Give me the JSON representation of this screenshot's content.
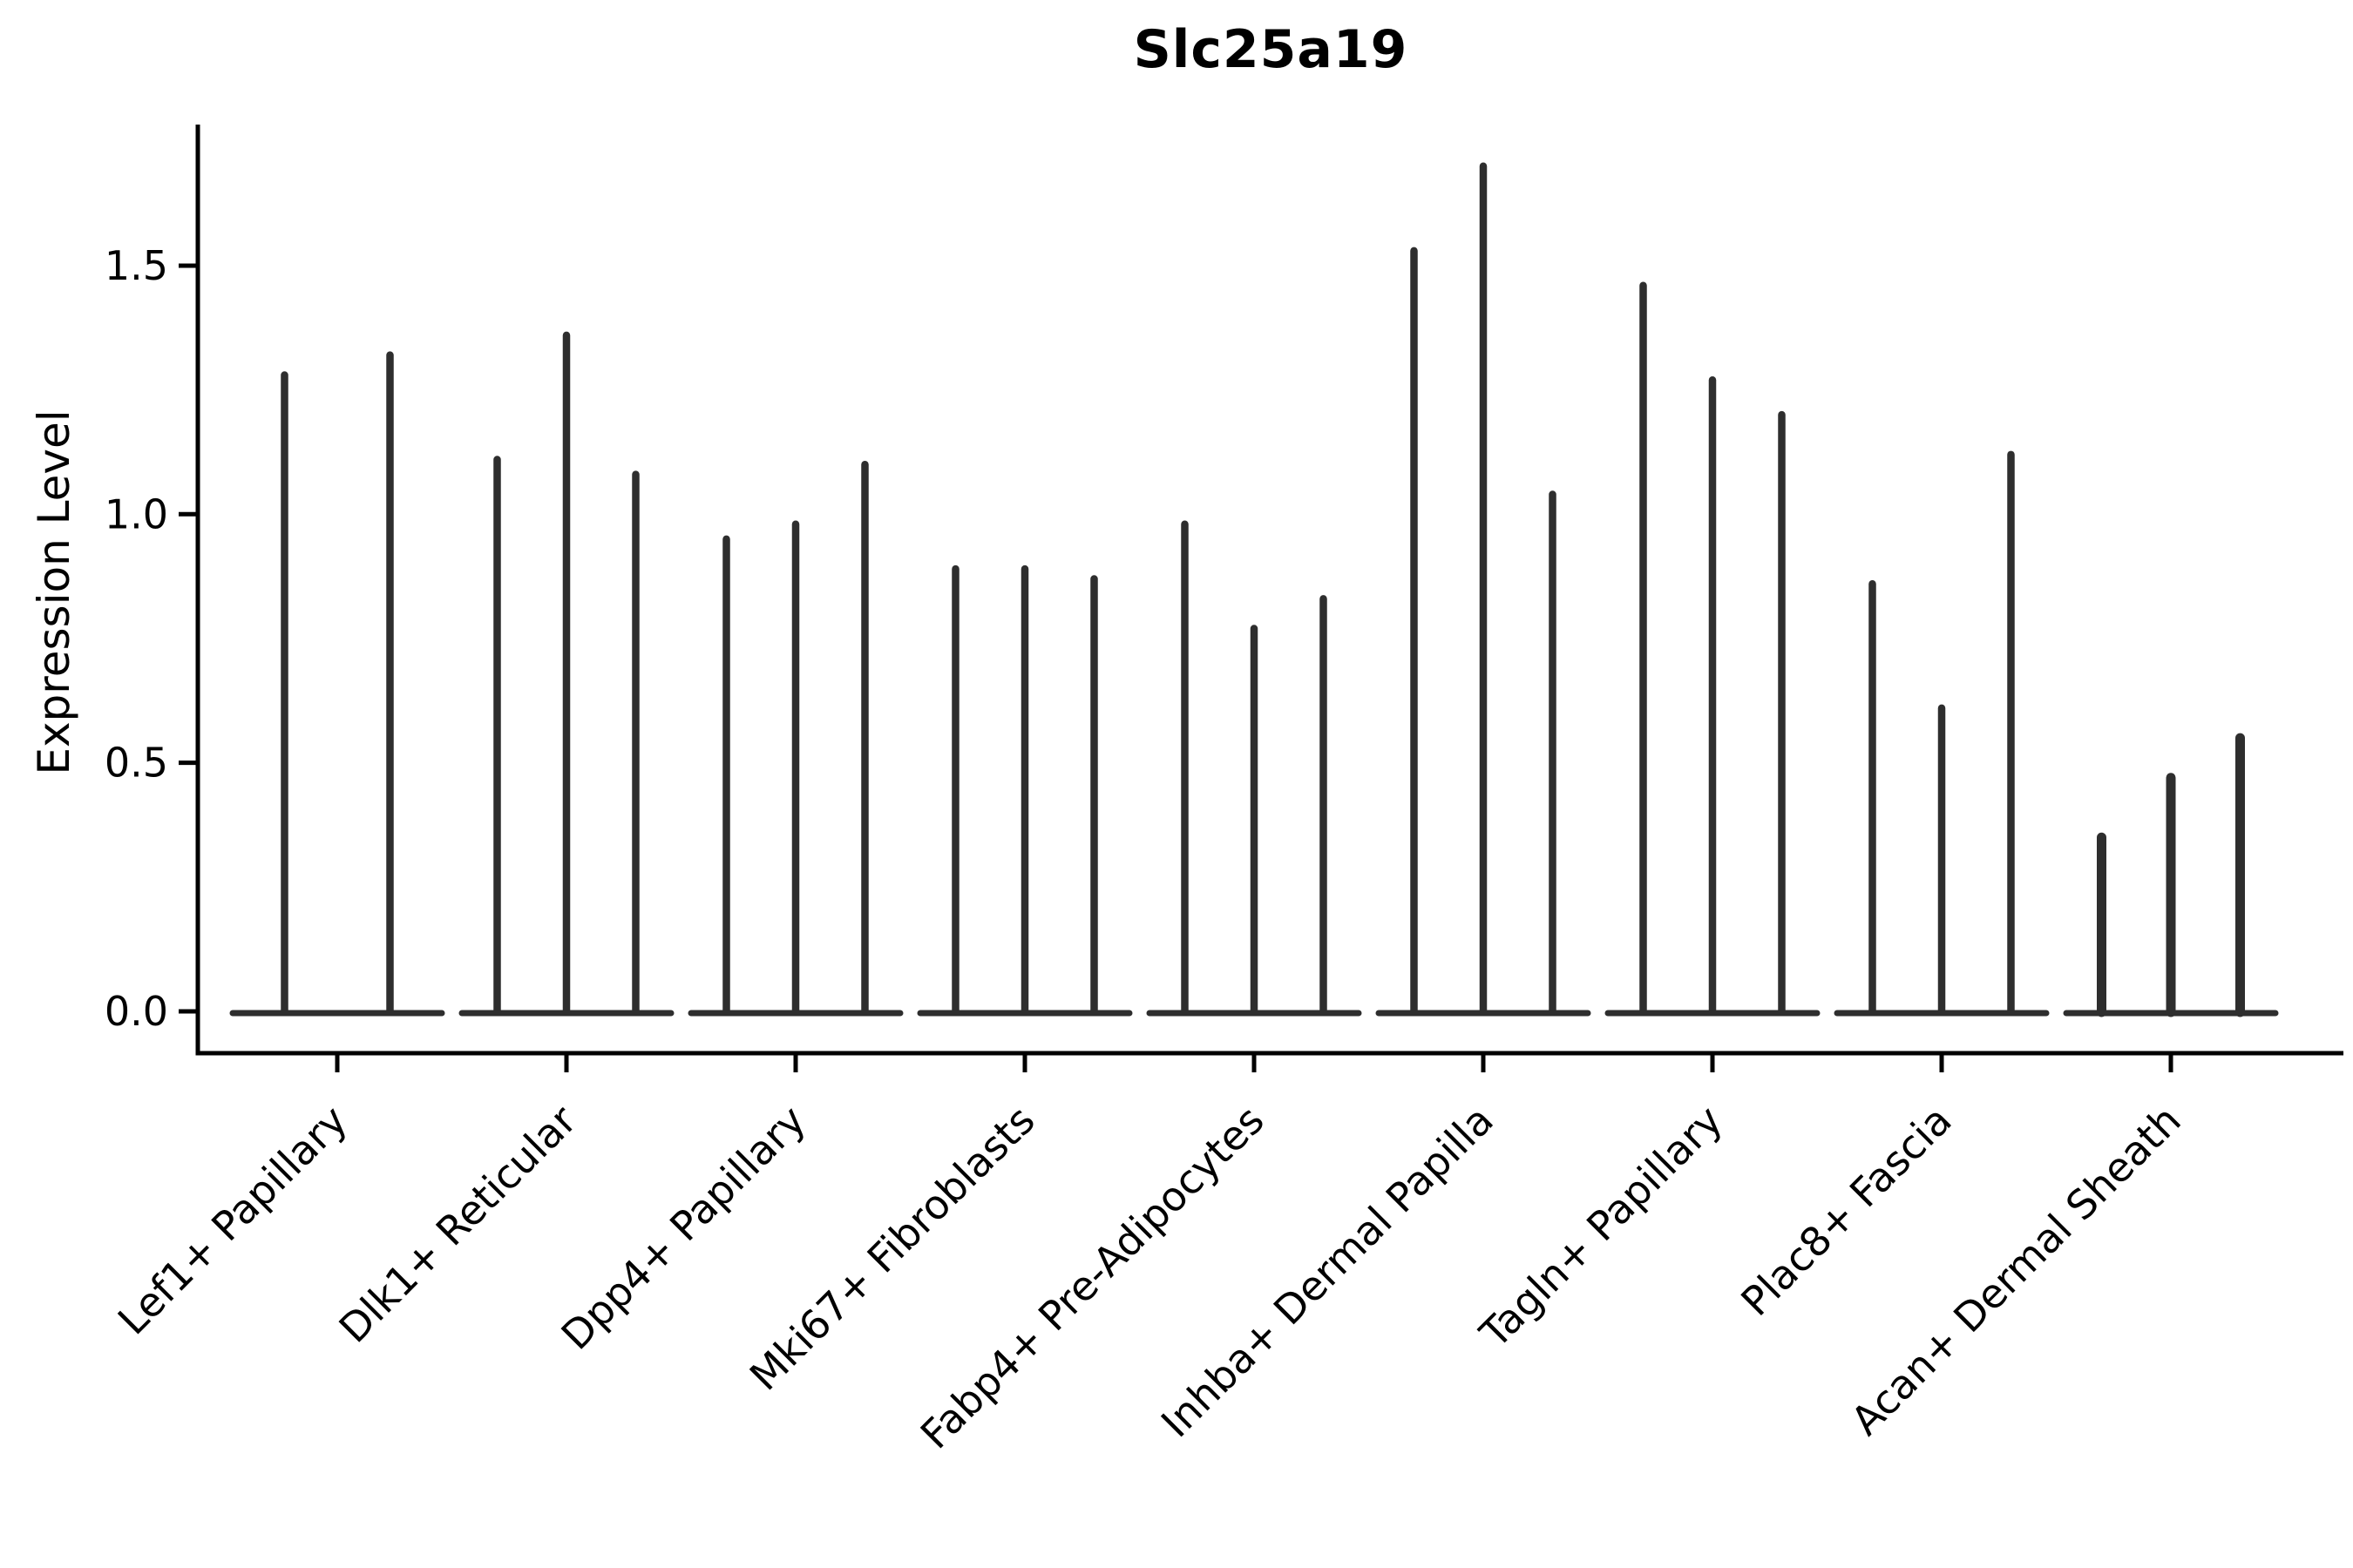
{
  "chart_data": {
    "type": "violin",
    "title": "Slc25a19",
    "ylabel": "Expression Level",
    "xlabel": "",
    "grid": false,
    "legend": false,
    "ylim": [
      -0.084,
      1.785
    ],
    "ytick_values": [
      0.0,
      0.5,
      1.0,
      1.5
    ],
    "ytick_labels": [
      "0.0",
      "0.5",
      "1.0",
      "1.5"
    ],
    "axis_color": "#000000",
    "violin_color": "#2e2e2e",
    "categories": [
      "Lef1+ Papillary",
      "Dlk1+ Reticular",
      "Dpp4+ Papillary",
      "Mki67+ Fibroblasts",
      "Fabp4+ Pre-Adipocytes",
      "Inhba+ Dermal Papilla",
      "Tagln+ Papillary",
      "Plac8+ Fascia",
      "Acan+ Dermal Sheath"
    ],
    "groups": [
      {
        "label": "Lef1+ Papillary",
        "spike_values": [
          1.28,
          1.32
        ]
      },
      {
        "label": "Dlk1+ Reticular",
        "spike_values": [
          1.11,
          1.36,
          1.08
        ]
      },
      {
        "label": "Dpp4+ Papillary",
        "spike_values": [
          0.95,
          0.98,
          1.1
        ]
      },
      {
        "label": "Mki67+ Fibroblasts",
        "spike_values": [
          0.89,
          0.89,
          0.87
        ]
      },
      {
        "label": "Fabp4+ Pre-Adipocytes",
        "spike_values": [
          0.98,
          0.77,
          0.83
        ]
      },
      {
        "label": "Inhba+ Dermal Papilla",
        "spike_values": [
          1.53,
          1.7,
          1.04
        ]
      },
      {
        "label": "Tagln+ Papillary",
        "spike_values": [
          1.46,
          1.27,
          1.2
        ]
      },
      {
        "label": "Plac8+ Fascia",
        "spike_values": [
          0.86,
          0.61,
          1.12
        ]
      },
      {
        "label": "Acan+ Dermal Sheath",
        "spike_values": [
          0.35,
          0.47,
          0.55
        ]
      }
    ]
  }
}
